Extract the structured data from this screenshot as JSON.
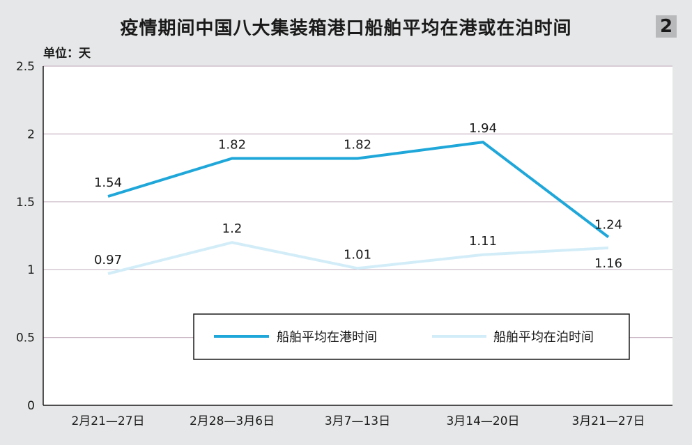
{
  "header": {
    "title": "疫情期间中国八大集装箱港口船舶平均在港或在泊时间",
    "badge": "2",
    "unit": "单位：天"
  },
  "chart_data": {
    "type": "line",
    "title": "疫情期间中国八大集装箱港口船舶平均在港或在泊时间",
    "ylabel": "单位：天",
    "ylim": [
      0,
      2.5
    ],
    "yticks": [
      "0",
      "0.5",
      "1",
      "1.5",
      "2",
      "2.5"
    ],
    "grid": true,
    "legend_position": "lower-right",
    "categories": [
      "2月21—27日",
      "2月28—3月6日",
      "3月7—13日",
      "3月14—20日",
      "3月21—27日"
    ],
    "series": [
      {
        "name": "船舶平均在港时间",
        "values": [
          1.54,
          1.82,
          1.82,
          1.94,
          1.24
        ],
        "labels": [
          "1.54",
          "1.82",
          "1.82",
          "1.94",
          "1.24"
        ],
        "color": "#1fa7d9"
      },
      {
        "name": "船舶平均在泊时间",
        "values": [
          0.97,
          1.2,
          1.01,
          1.11,
          1.16
        ],
        "labels": [
          "0.97",
          "1.2",
          "1.01",
          "1.11",
          "1.16"
        ],
        "color": "#d3edf8"
      }
    ]
  }
}
